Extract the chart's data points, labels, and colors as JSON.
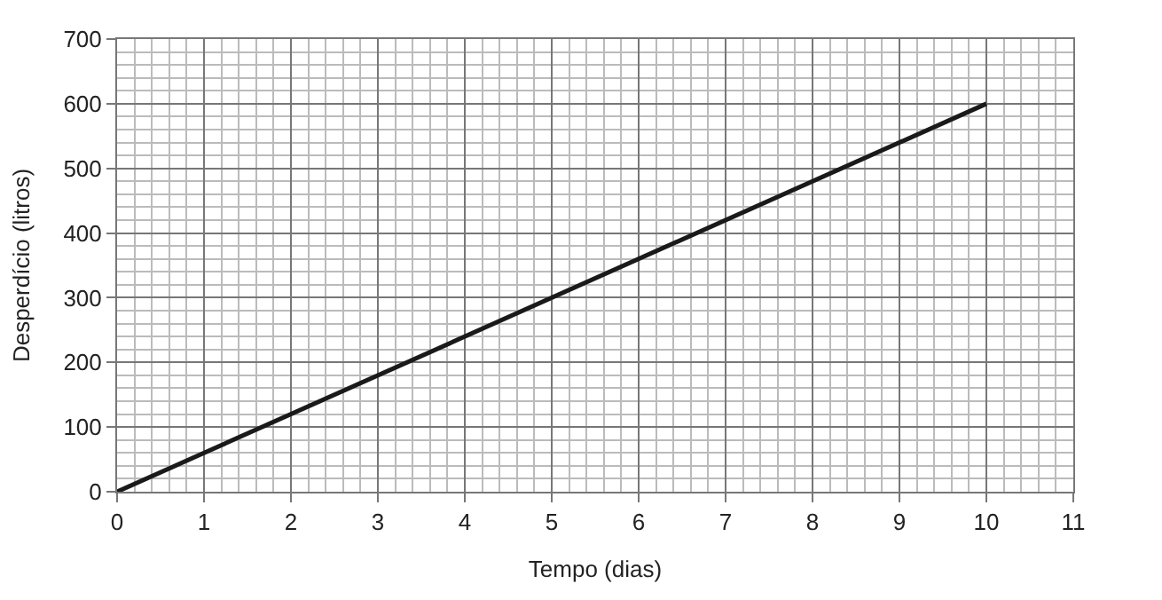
{
  "chart_data": {
    "type": "line",
    "xlabel": "Tempo (dias)",
    "ylabel": "Desperdício (litros)",
    "x": [
      0,
      10
    ],
    "series": [
      {
        "color": "#1a1a1a",
        "values": [
          0,
          600
        ]
      }
    ],
    "xlim": [
      0,
      11
    ],
    "xticks": [
      0,
      1,
      2,
      3,
      4,
      5,
      6,
      7,
      8,
      9,
      10,
      11
    ],
    "ylim": [
      0,
      700
    ],
    "yticks": [
      0,
      100,
      200,
      300,
      400,
      500,
      600,
      700
    ],
    "grid": true,
    "legend": false,
    "marker": "none",
    "line_style": "solid"
  }
}
